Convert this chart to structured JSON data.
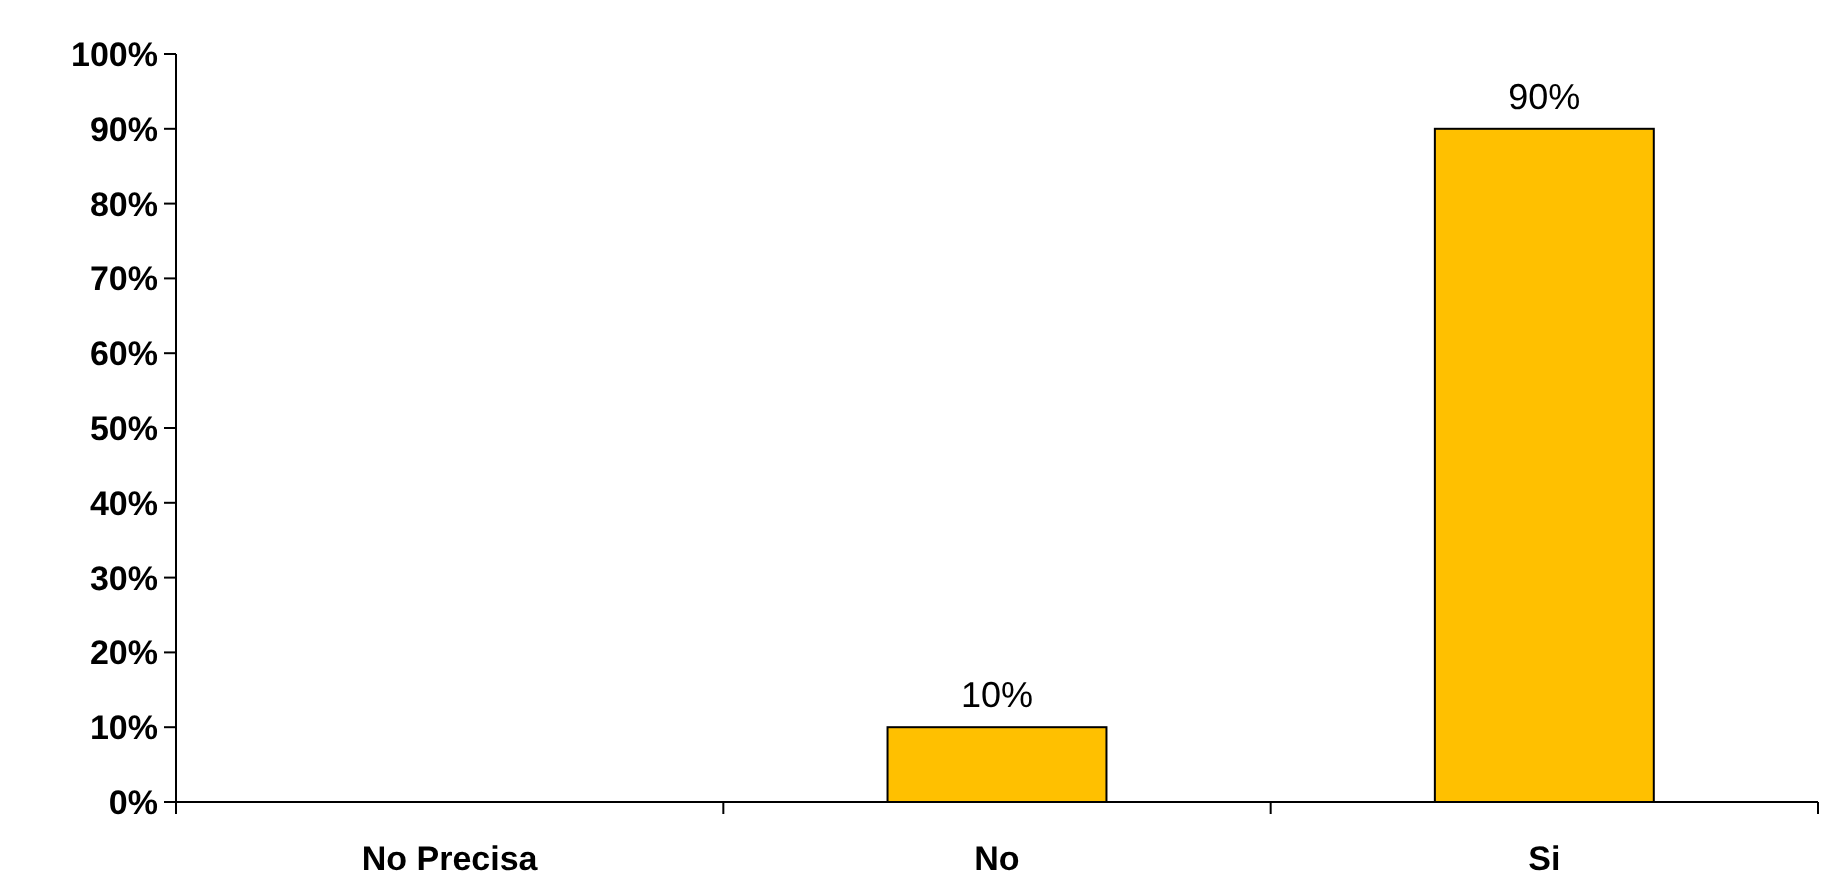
{
  "chart_data": {
    "type": "bar",
    "categories": [
      "No Precisa",
      "No",
      "Si"
    ],
    "values": [
      0,
      10,
      90
    ],
    "color": "#ffc000",
    "value_labels": [
      null,
      "10%",
      "90%"
    ],
    "ylim": [
      0,
      100
    ],
    "yticks": [
      {
        "value": 0,
        "label": "0%"
      },
      {
        "value": 10,
        "label": "10%"
      },
      {
        "value": 20,
        "label": "20%"
      },
      {
        "value": 30,
        "label": "30%"
      },
      {
        "value": 40,
        "label": "40%"
      },
      {
        "value": 50,
        "label": "50%"
      },
      {
        "value": 60,
        "label": "60%"
      },
      {
        "value": 70,
        "label": "70%"
      },
      {
        "value": 80,
        "label": "80%"
      },
      {
        "value": 90,
        "label": "90%"
      },
      {
        "value": 100,
        "label": "100%"
      }
    ],
    "grid": false
  }
}
